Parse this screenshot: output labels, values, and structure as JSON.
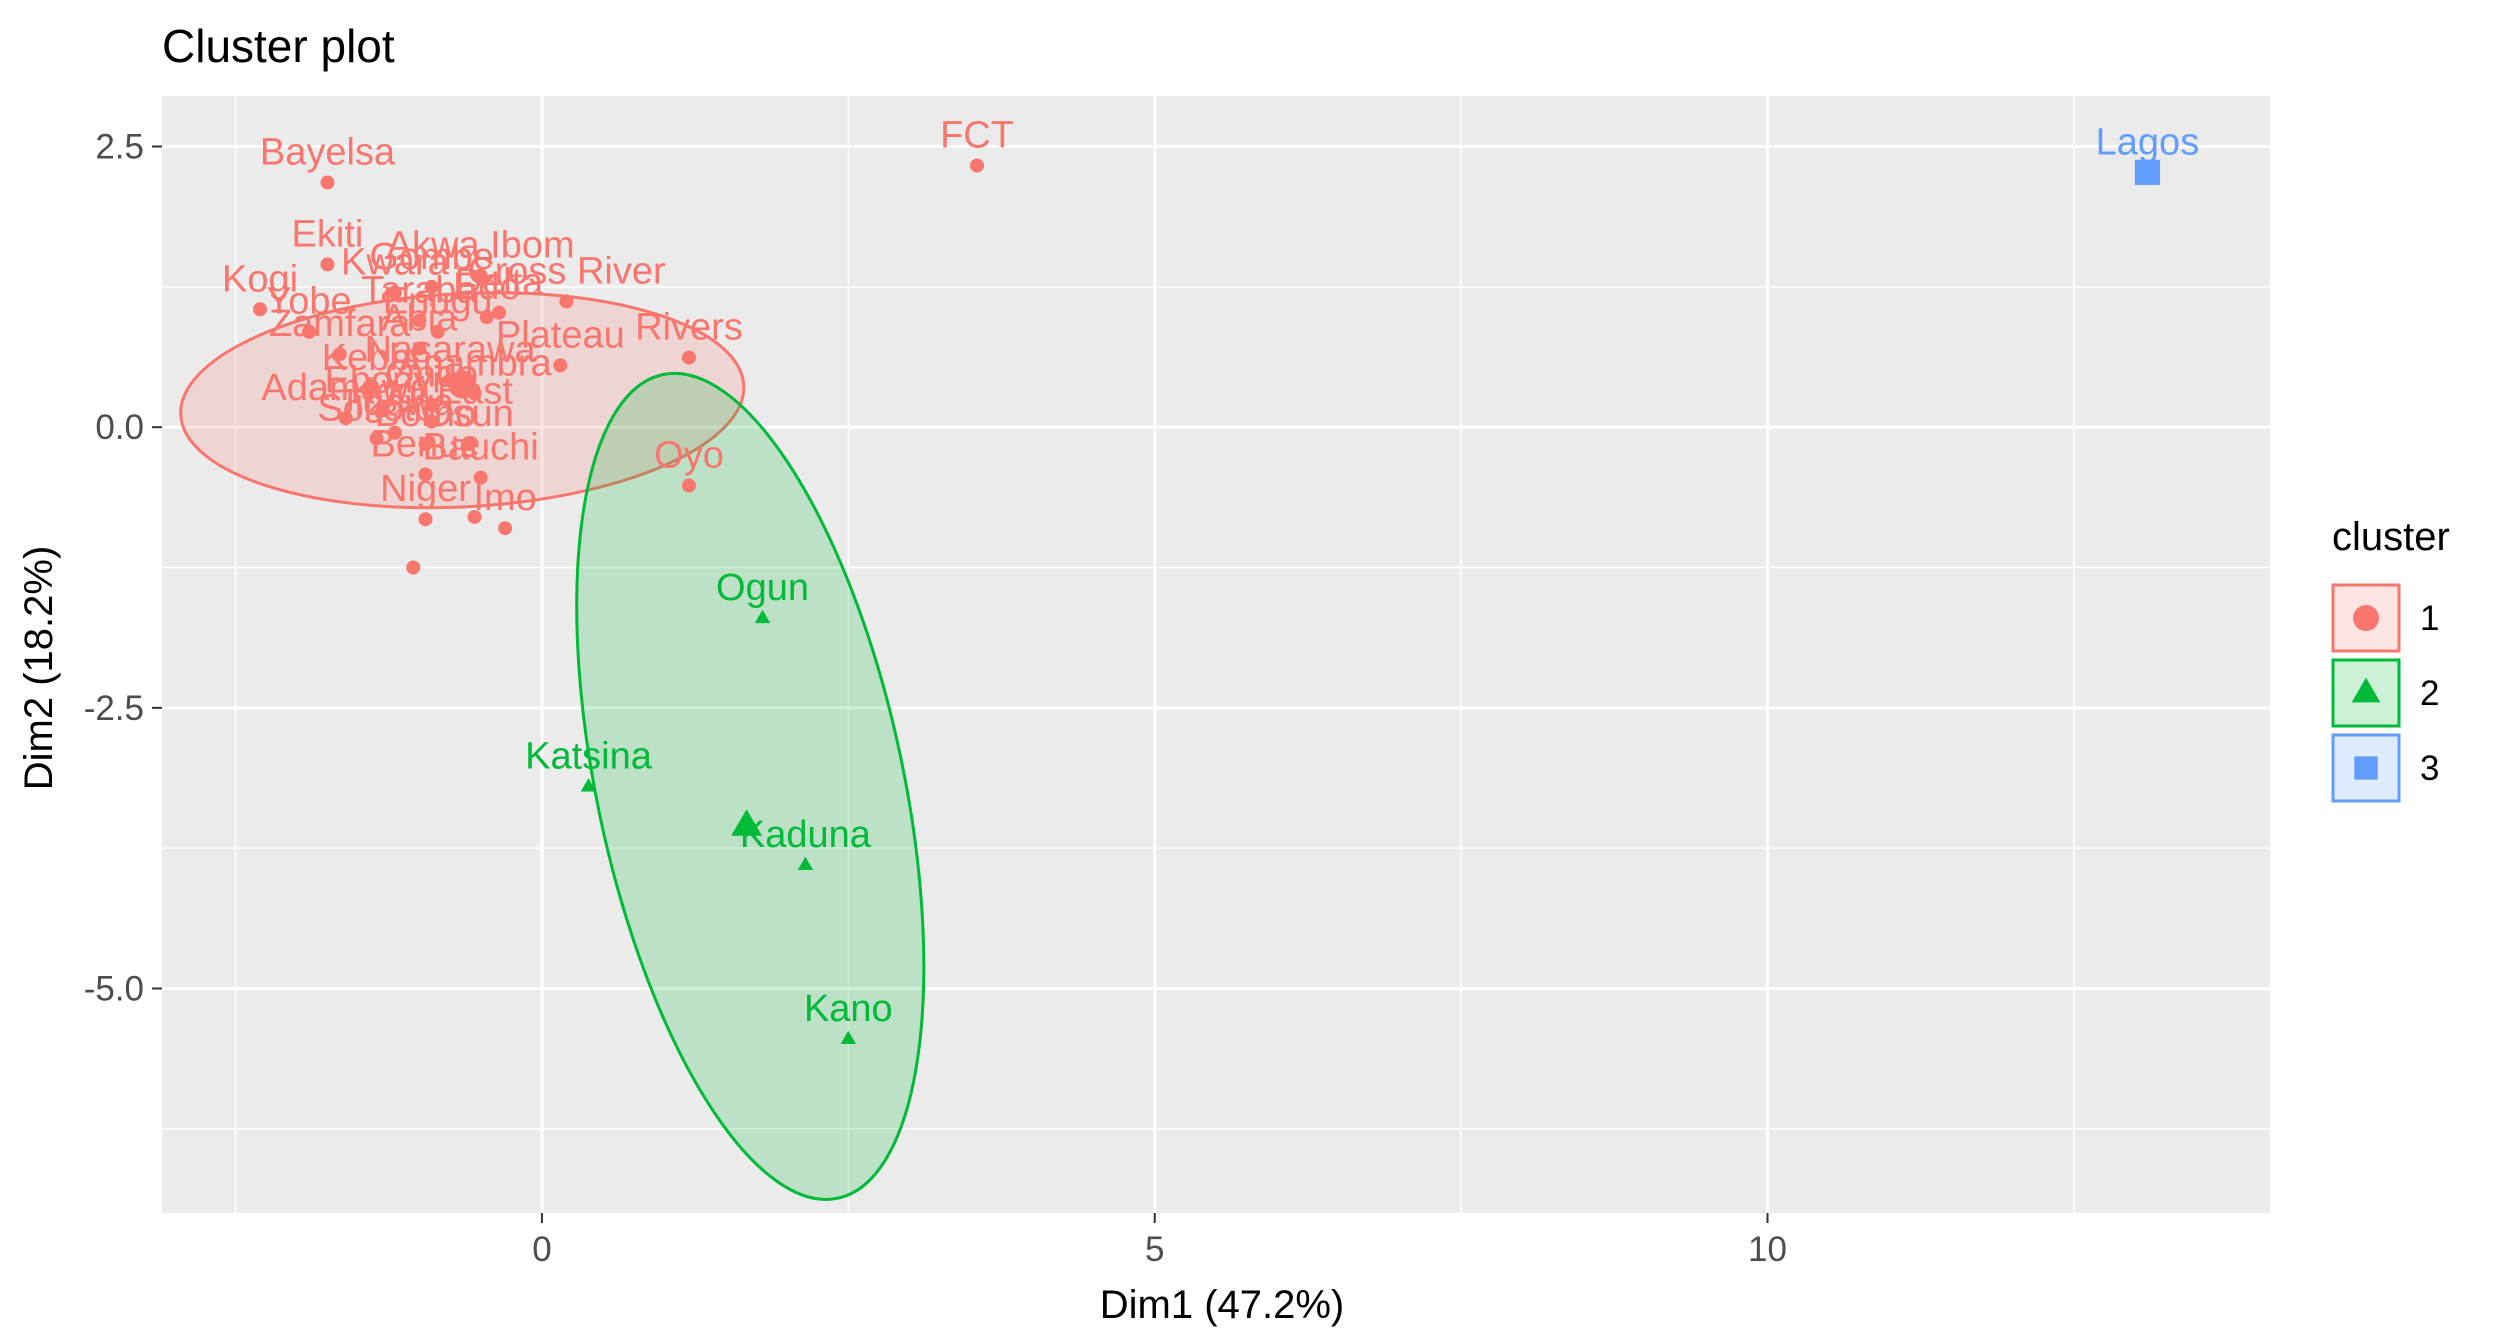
{
  "chart_data": {
    "type": "scatter",
    "title": "Cluster plot",
    "xlabel": "Dim1 (47.2%)",
    "ylabel": "Dim2 (18.2%)",
    "xlim": [
      -3.1,
      14.1
    ],
    "ylim": [
      -7.0,
      2.95
    ],
    "x_ticks": [
      0,
      5,
      10
    ],
    "x_tick_labels": [
      "0",
      "5",
      "10"
    ],
    "y_ticks": [
      -5.0,
      -2.5,
      0.0,
      2.5
    ],
    "y_tick_labels": [
      "-5.0",
      "-2.5",
      "0.0",
      "2.5"
    ],
    "grid": true,
    "legend": {
      "title": "cluster",
      "placement": "right",
      "entries": [
        "1",
        "2",
        "3"
      ]
    },
    "colors": {
      "1": "#F8766D",
      "2": "#00BA38",
      "3": "#619CFF"
    },
    "ellipses": [
      {
        "cluster": "1",
        "cx": -0.65,
        "cy": 0.24,
        "rx": 2.3,
        "ry": 0.95,
        "angle_deg": -3
      },
      {
        "cluster": "2",
        "cx": 1.7,
        "cy": -3.2,
        "rx": 1.25,
        "ry": 3.75,
        "angle_deg": -12
      }
    ],
    "centroids": [
      {
        "cluster": "1",
        "x": -0.65,
        "y": 0.38
      },
      {
        "cluster": "2",
        "x": 1.67,
        "y": -3.55
      },
      {
        "cluster": "3",
        "x": 13.1,
        "y": 2.27
      }
    ],
    "points": [
      {
        "label": "Bayelsa",
        "x": -1.75,
        "y": 2.18,
        "cluster": "1"
      },
      {
        "label": "FCT",
        "x": 3.55,
        "y": 2.33,
        "cluster": "1"
      },
      {
        "label": "Ekiti",
        "x": -1.75,
        "y": 1.45,
        "cluster": "1"
      },
      {
        "label": "Akwa Ibom",
        "x": -0.5,
        "y": 1.35,
        "cluster": "1"
      },
      {
        "label": "Kogi",
        "x": -2.3,
        "y": 1.05,
        "cluster": "1"
      },
      {
        "label": "Kwara",
        "x": -1.2,
        "y": 1.2,
        "cluster": "1"
      },
      {
        "label": "Cross River",
        "x": 0.2,
        "y": 1.12,
        "cluster": "1"
      },
      {
        "label": "Gombe",
        "x": -0.9,
        "y": 1.25,
        "cluster": "1"
      },
      {
        "label": "Delta",
        "x": -0.35,
        "y": 1.02,
        "cluster": "1"
      },
      {
        "label": "Yobe",
        "x": -1.9,
        "y": 0.85,
        "cluster": "1"
      },
      {
        "label": "Zamfara",
        "x": -1.65,
        "y": 0.65,
        "cluster": "1"
      },
      {
        "label": "Taraba",
        "x": -1.0,
        "y": 0.95,
        "cluster": "1"
      },
      {
        "label": "Kebbi",
        "x": -1.4,
        "y": 0.35,
        "cluster": "1"
      },
      {
        "label": "Nasarawa",
        "x": -0.75,
        "y": 0.42,
        "cluster": "1"
      },
      {
        "label": "Edo",
        "x": -0.45,
        "y": 0.98,
        "cluster": "1"
      },
      {
        "label": "Enugu",
        "x": -0.85,
        "y": 0.85,
        "cluster": "1"
      },
      {
        "label": "Plateau",
        "x": 0.15,
        "y": 0.55,
        "cluster": "1"
      },
      {
        "label": "Rivers",
        "x": 1.2,
        "y": 0.62,
        "cluster": "1"
      },
      {
        "label": "Abia",
        "x": -1.0,
        "y": 0.7,
        "cluster": "1"
      },
      {
        "label": "Adamawa",
        "x": -1.6,
        "y": 0.08,
        "cluster": "1"
      },
      {
        "label": "Anambra",
        "x": -0.55,
        "y": 0.3,
        "cluster": "1"
      },
      {
        "label": "Ebonyi",
        "x": -1.3,
        "y": 0.15,
        "cluster": "1"
      },
      {
        "label": "Borno",
        "x": -0.95,
        "y": -0.15,
        "cluster": "1"
      },
      {
        "label": "Sokoto",
        "x": -1.35,
        "y": -0.1,
        "cluster": "1"
      },
      {
        "label": "Osun",
        "x": -0.6,
        "y": -0.15,
        "cluster": "1"
      },
      {
        "label": "Jigawa",
        "x": -1.2,
        "y": -0.05,
        "cluster": "1"
      },
      {
        "label": "Kogi East",
        "x": -0.9,
        "y": 0.05,
        "cluster": "1"
      },
      {
        "label": "Ondo",
        "x": -0.9,
        "y": 0.2,
        "cluster": "1"
      },
      {
        "label": "Oyo",
        "x": 1.2,
        "y": -0.52,
        "cluster": "1"
      },
      {
        "label": "Benue",
        "x": -0.95,
        "y": -0.42,
        "cluster": "1"
      },
      {
        "label": "Bauchi",
        "x": -0.5,
        "y": -0.45,
        "cluster": "1"
      },
      {
        "label": "Imo",
        "x": -0.3,
        "y": -0.9,
        "cluster": "1"
      },
      {
        "label": "Niger",
        "x": -0.95,
        "y": -0.82,
        "cluster": "1"
      },
      {
        "label": "",
        "x": -1.05,
        "y": -1.25,
        "cluster": "1"
      },
      {
        "label": "",
        "x": -0.55,
        "y": -0.8,
        "cluster": "1"
      },
      {
        "label": "Ogun",
        "x": 1.8,
        "y": -1.7,
        "cluster": "2"
      },
      {
        "label": "Katsina",
        "x": 0.38,
        "y": -3.2,
        "cluster": "2"
      },
      {
        "label": "Kaduna",
        "x": 2.15,
        "y": -3.9,
        "cluster": "2"
      },
      {
        "label": "Kano",
        "x": 2.5,
        "y": -5.45,
        "cluster": "2"
      },
      {
        "label": "Lagos",
        "x": 13.1,
        "y": 2.27,
        "cluster": "3"
      }
    ]
  }
}
